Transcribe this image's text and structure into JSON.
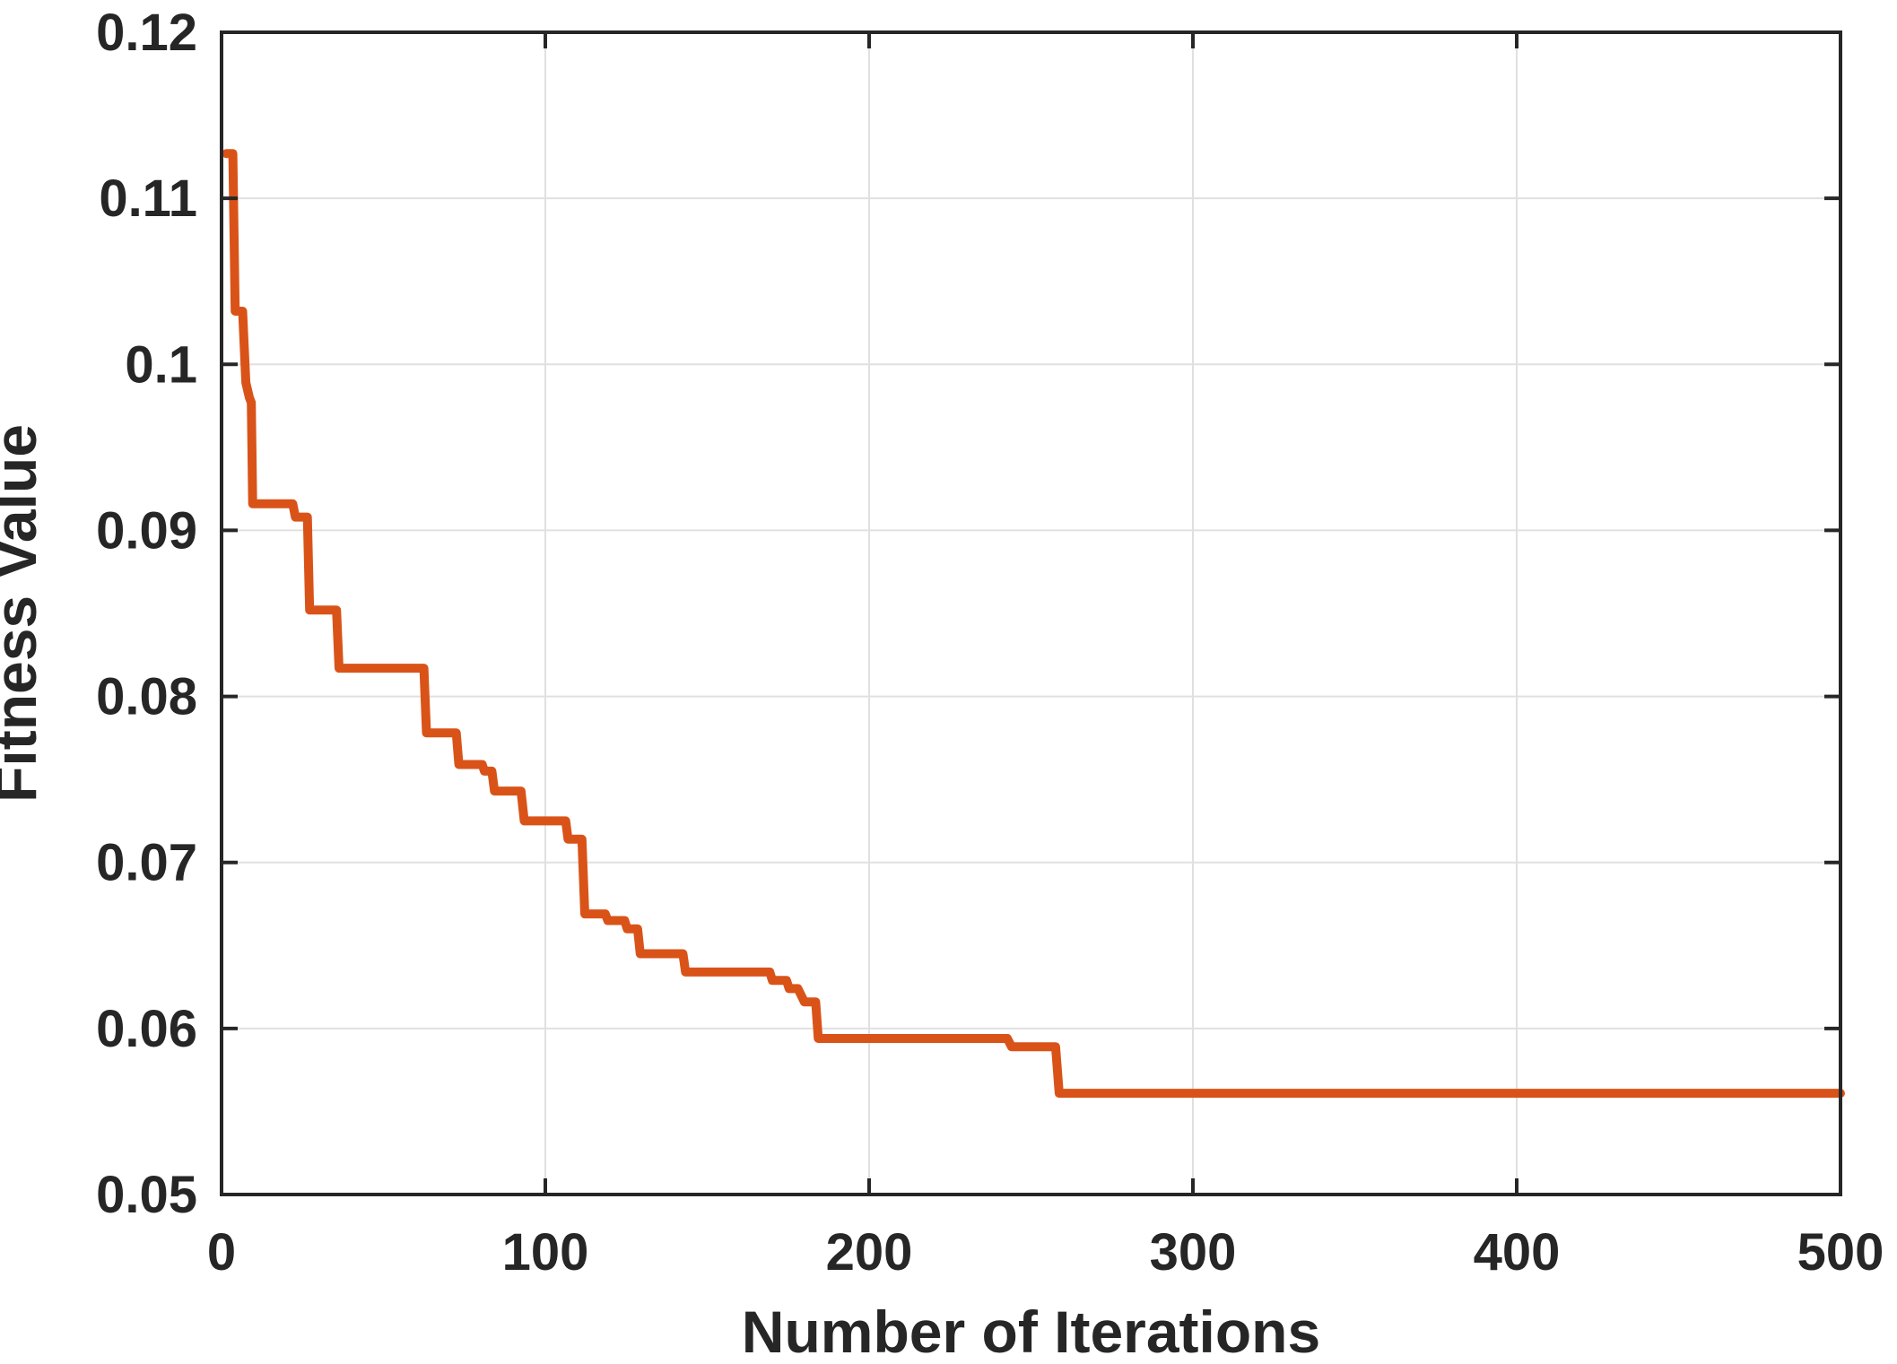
{
  "figure": {
    "background": "#FFFFFF",
    "axes_color": "#262626",
    "grid_color": "#E0E0E0",
    "text_color": "#262626"
  },
  "chart_data": {
    "type": "line",
    "title": "",
    "xlabel": "Number of Iterations",
    "ylabel": "Fitness Value",
    "xlim": [
      0,
      500
    ],
    "ylim": [
      0.05,
      0.12
    ],
    "grid": "on",
    "legend": "none",
    "xticks": {
      "values": [
        0,
        100,
        200,
        300,
        400,
        500
      ],
      "labels": [
        "0",
        "100",
        "200",
        "300",
        "400",
        "500"
      ]
    },
    "yticks": {
      "values": [
        0.05,
        0.06,
        0.07,
        0.08,
        0.09,
        0.1,
        0.11,
        0.12
      ],
      "labels": [
        "0.05",
        "0.06",
        "0.07",
        "0.08",
        "0.09",
        "0.1",
        "0.11",
        "0.12"
      ]
    },
    "series": [
      {
        "name": "Fitness Value",
        "color": "#D95319",
        "line_width": 10,
        "points": [
          [
            1.5,
            0.1127
          ],
          [
            3.5,
            0.1127
          ],
          [
            4.2,
            0.1032
          ],
          [
            6.5,
            0.1032
          ],
          [
            7.5,
            0.0989
          ],
          [
            8.6,
            0.098
          ],
          [
            9.2,
            0.0977
          ],
          [
            9.6,
            0.0916
          ],
          [
            22.0,
            0.0916
          ],
          [
            22.8,
            0.0908
          ],
          [
            26.5,
            0.0908
          ],
          [
            27.2,
            0.0852
          ],
          [
            35.5,
            0.0852
          ],
          [
            36.3,
            0.0817
          ],
          [
            62.5,
            0.0817
          ],
          [
            63.3,
            0.0778
          ],
          [
            72.5,
            0.0778
          ],
          [
            73.3,
            0.0759
          ],
          [
            80.5,
            0.0759
          ],
          [
            81.2,
            0.0755
          ],
          [
            83.5,
            0.0755
          ],
          [
            84.3,
            0.0743
          ],
          [
            92.5,
            0.0743
          ],
          [
            93.5,
            0.0725
          ],
          [
            106.3,
            0.0725
          ],
          [
            107.0,
            0.0714
          ],
          [
            111.3,
            0.0714
          ],
          [
            112.2,
            0.0669
          ],
          [
            118.5,
            0.0669
          ],
          [
            119.3,
            0.0665
          ],
          [
            124.5,
            0.0665
          ],
          [
            125.3,
            0.066
          ],
          [
            128.5,
            0.066
          ],
          [
            129.3,
            0.0645
          ],
          [
            142.5,
            0.0645
          ],
          [
            143.3,
            0.0634
          ],
          [
            169.3,
            0.0634
          ],
          [
            170.1,
            0.0629
          ],
          [
            174.5,
            0.0629
          ],
          [
            175.3,
            0.0624
          ],
          [
            178.0,
            0.0624
          ],
          [
            180.0,
            0.0616
          ],
          [
            183.5,
            0.0616
          ],
          [
            184.3,
            0.0594
          ],
          [
            242.7,
            0.0594
          ],
          [
            244.0,
            0.0589
          ],
          [
            257.6,
            0.0589
          ],
          [
            258.7,
            0.0561
          ],
          [
            500.0,
            0.0561
          ]
        ]
      }
    ]
  }
}
